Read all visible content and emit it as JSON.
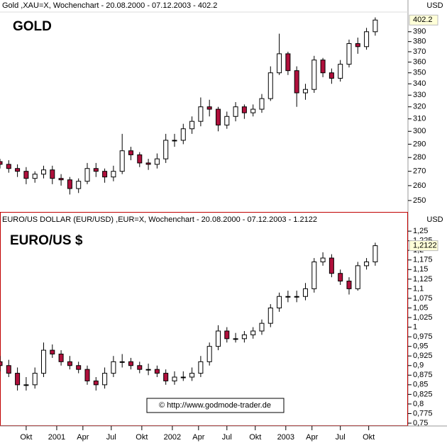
{
  "chart_data": [
    {
      "type": "candlestick",
      "title": "Gold ,XAU=X, Wochenchart - 20.08.2000 - 07.12.2003 - 402.2",
      "label": "GOLD",
      "currency": "USD",
      "log_scale": true,
      "last_value_label": "402.2",
      "xlim": [
        0,
        187
      ],
      "x": [
        0,
        4,
        8,
        12,
        16,
        20,
        24,
        28,
        32,
        36,
        40,
        44,
        48,
        52,
        56,
        60,
        64,
        68,
        72,
        76,
        80,
        84,
        88,
        92,
        96,
        100,
        104,
        108,
        112,
        116,
        120,
        124,
        128,
        132,
        136,
        140,
        144,
        148,
        152,
        156,
        160,
        164,
        168,
        172
      ],
      "open": [
        277,
        275,
        272,
        270,
        265,
        268,
        271,
        265,
        264,
        258,
        263,
        272,
        270,
        266,
        270,
        285,
        282,
        276,
        275,
        279,
        293,
        293,
        302,
        308,
        320,
        318,
        305,
        312,
        320,
        315,
        318,
        327,
        350,
        368,
        352,
        332,
        335,
        362,
        350,
        345,
        358,
        378,
        375,
        390
      ],
      "high": [
        279,
        278,
        275,
        273,
        270,
        274,
        274,
        268,
        266,
        265,
        276,
        276,
        272,
        274,
        298,
        288,
        284,
        279,
        283,
        298,
        298,
        306,
        312,
        328,
        326,
        320,
        316,
        324,
        322,
        322,
        331,
        356,
        388,
        370,
        356,
        340,
        366,
        364,
        354,
        362,
        382,
        384,
        394,
        405
      ],
      "low": [
        272,
        269,
        266,
        261,
        262,
        265,
        261,
        260,
        254,
        255,
        261,
        266,
        262,
        263,
        268,
        278,
        273,
        271,
        272,
        276,
        288,
        290,
        298,
        304,
        312,
        300,
        302,
        308,
        310,
        312,
        315,
        325,
        348,
        348,
        320,
        326,
        332,
        346,
        340,
        342,
        355,
        368,
        372,
        386
      ],
      "close": [
        275,
        272,
        270,
        265,
        268,
        271,
        265,
        264,
        258,
        263,
        272,
        270,
        266,
        270,
        285,
        282,
        276,
        275,
        279,
        293,
        293,
        302,
        308,
        320,
        318,
        305,
        312,
        320,
        315,
        318,
        327,
        350,
        368,
        352,
        332,
        335,
        362,
        350,
        345,
        358,
        378,
        375,
        390,
        402.2
      ],
      "ylim": [
        243.5,
        410
      ],
      "yticks": [
        250,
        260,
        270,
        280,
        290,
        300,
        310,
        320,
        330,
        340,
        350,
        360,
        370,
        380,
        390
      ],
      "up_color": "#ffffff",
      "down_color": "#b0103c",
      "wick_color": "#000000"
    },
    {
      "type": "candlestick",
      "title": "EURO/US DOLLAR (EUR/USD) ,EUR=X, Wochenchart - 20.08.2000 - 07.12.2003 - 1.2122",
      "label": "EURO/US $",
      "currency": "USD",
      "log_scale": false,
      "last_value_label": "1,2122",
      "xlim": [
        0,
        187
      ],
      "x": [
        0,
        4,
        8,
        12,
        16,
        20,
        24,
        28,
        32,
        36,
        40,
        44,
        48,
        52,
        56,
        60,
        64,
        68,
        72,
        76,
        80,
        84,
        88,
        92,
        96,
        100,
        104,
        108,
        112,
        116,
        120,
        124,
        128,
        132,
        136,
        140,
        144,
        148,
        152,
        156,
        160,
        164,
        168,
        172
      ],
      "open": [
        0.91,
        0.9,
        0.88,
        0.85,
        0.85,
        0.88,
        0.94,
        0.93,
        0.91,
        0.9,
        0.89,
        0.86,
        0.85,
        0.88,
        0.91,
        0.91,
        0.9,
        0.89,
        0.89,
        0.88,
        0.86,
        0.87,
        0.87,
        0.88,
        0.91,
        0.95,
        0.99,
        0.97,
        0.97,
        0.98,
        0.99,
        1.01,
        1.05,
        1.08,
        1.08,
        1.08,
        1.1,
        1.17,
        1.18,
        1.14,
        1.12,
        1.1,
        1.16,
        1.17
      ],
      "high": [
        0.925,
        0.915,
        0.895,
        0.87,
        0.895,
        0.96,
        0.955,
        0.94,
        0.925,
        0.91,
        0.9,
        0.87,
        0.895,
        0.925,
        0.93,
        0.92,
        0.91,
        0.905,
        0.9,
        0.89,
        0.885,
        0.885,
        0.895,
        0.925,
        0.96,
        1.005,
        1.0,
        0.985,
        0.99,
        1.0,
        1.02,
        1.06,
        1.09,
        1.095,
        1.095,
        1.115,
        1.18,
        1.195,
        1.19,
        1.15,
        1.13,
        1.17,
        1.18,
        1.22
      ],
      "low": [
        0.885,
        0.87,
        0.835,
        0.835,
        0.84,
        0.87,
        0.92,
        0.9,
        0.89,
        0.88,
        0.85,
        0.835,
        0.84,
        0.87,
        0.895,
        0.89,
        0.88,
        0.875,
        0.87,
        0.85,
        0.85,
        0.86,
        0.86,
        0.87,
        0.9,
        0.94,
        0.96,
        0.96,
        0.96,
        0.97,
        0.98,
        1.0,
        1.04,
        1.065,
        1.065,
        1.07,
        1.09,
        1.16,
        1.13,
        1.11,
        1.085,
        1.095,
        1.15,
        1.16
      ],
      "close": [
        0.9,
        0.88,
        0.85,
        0.85,
        0.88,
        0.94,
        0.93,
        0.91,
        0.9,
        0.89,
        0.86,
        0.85,
        0.88,
        0.91,
        0.91,
        0.9,
        0.89,
        0.89,
        0.88,
        0.86,
        0.87,
        0.87,
        0.88,
        0.91,
        0.95,
        0.99,
        0.97,
        0.97,
        0.98,
        0.99,
        1.01,
        1.05,
        1.08,
        1.08,
        1.08,
        1.1,
        1.17,
        1.18,
        1.14,
        1.12,
        1.1,
        1.16,
        1.17,
        1.2122
      ],
      "ylim": [
        0.7445,
        1.265
      ],
      "yticks": [
        {
          "value": 0.75,
          "label": "0,75"
        },
        {
          "value": 0.775,
          "label": "0,775"
        },
        {
          "value": 0.8,
          "label": "0,8"
        },
        {
          "value": 0.825,
          "label": "0,825"
        },
        {
          "value": 0.85,
          "label": "0,85"
        },
        {
          "value": 0.875,
          "label": "0,875"
        },
        {
          "value": 0.9,
          "label": "0,9"
        },
        {
          "value": 0.925,
          "label": "0,925"
        },
        {
          "value": 0.95,
          "label": "0,95"
        },
        {
          "value": 0.975,
          "label": "0,975"
        },
        1,
        {
          "value": 1.025,
          "label": "1,025"
        },
        {
          "value": 1.05,
          "label": "1,05"
        },
        {
          "value": 1.075,
          "label": "1,075"
        },
        {
          "value": 1.1,
          "label": "1,1"
        },
        {
          "value": 1.125,
          "label": "1,125"
        },
        {
          "value": 1.15,
          "label": "1,15"
        },
        {
          "value": 1.175,
          "label": "1,175"
        },
        {
          "value": 1.2,
          "label": "1,2"
        },
        {
          "value": 1.225,
          "label": "1,225"
        },
        {
          "value": 1.25,
          "label": "1,25"
        }
      ],
      "xticks": [
        {
          "value": 12,
          "label": "Okt"
        },
        {
          "value": 26,
          "label": "2001"
        },
        {
          "value": 38,
          "label": "Apr"
        },
        {
          "value": 51,
          "label": "Jul"
        },
        {
          "value": 65,
          "label": "Okt"
        },
        {
          "value": 79,
          "label": "2002"
        },
        {
          "value": 91,
          "label": "Apr"
        },
        {
          "value": 104,
          "label": "Jul"
        },
        {
          "value": 117,
          "label": "Okt"
        },
        {
          "value": 131,
          "label": "2003"
        },
        {
          "value": 143,
          "label": "Apr"
        },
        {
          "value": 156,
          "label": "Jul"
        },
        {
          "value": 169,
          "label": "Okt"
        }
      ],
      "up_color": "#ffffff",
      "down_color": "#b0103c",
      "wick_color": "#000000"
    }
  ],
  "copyright": "© http://www.godmode-trader.de"
}
